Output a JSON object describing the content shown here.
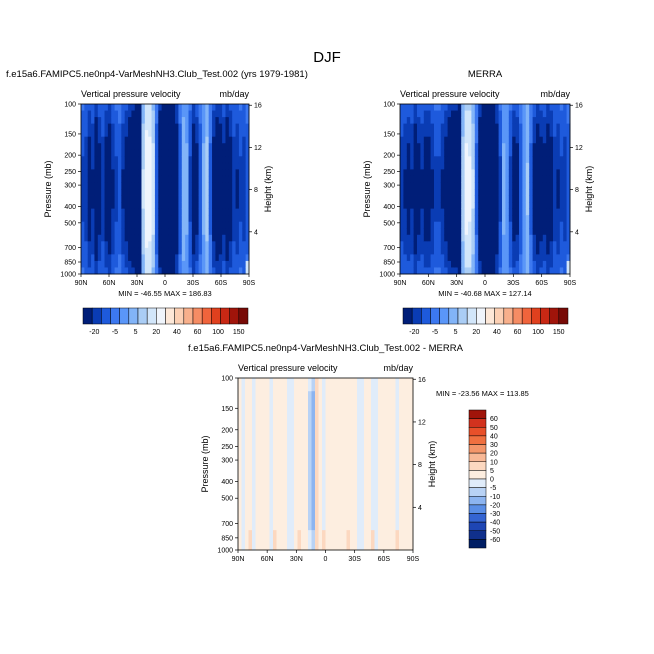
{
  "page": {
    "title": "DJF"
  },
  "chart_data": [
    {
      "type": "heatmap",
      "title": "f.e15a6.FAMIPC5.ne0np4-VarMeshNH3.Club_Test.002 (yrs 1979-1981)",
      "subtitle_left": "Vertical pressure velocity",
      "subtitle_right": "mb/day",
      "ylabel": "Pressure (mb)",
      "ylabel_right": "Height (km)",
      "x_ticks": [
        "90N",
        "60N",
        "30N",
        "0",
        "30S",
        "60S",
        "90S"
      ],
      "y_ticks": [
        "100",
        "150",
        "200",
        "250",
        "300",
        "400",
        "500",
        "700",
        "850",
        "1000"
      ],
      "y_right_ticks": [
        "4",
        "8",
        "12",
        "16"
      ],
      "stats": "MIN = -46.55   MAX = 186.83",
      "lat_profile": [
        -10,
        -12,
        -18,
        -14,
        -22,
        -16,
        -12,
        -18,
        -20,
        -14,
        -10,
        -8,
        -14,
        -18,
        -24,
        -28,
        -30,
        -32,
        12,
        28,
        26,
        14,
        -8,
        -26,
        -36,
        -40,
        -38,
        -34,
        -20,
        -8,
        6,
        4,
        -10,
        -20,
        -16,
        -8,
        4,
        10,
        -6,
        -18,
        -22,
        -20,
        -16,
        -22,
        -18,
        -12,
        -14,
        -10,
        -12,
        -8
      ]
    },
    {
      "type": "heatmap",
      "title": "MERRA",
      "subtitle_left": "Vertical pressure velocity",
      "subtitle_right": "mb/day",
      "ylabel": "Pressure (mb)",
      "ylabel_right": "Height (km)",
      "x_ticks": [
        "90N",
        "60N",
        "30N",
        "0",
        "30S",
        "60S",
        "90S"
      ],
      "y_ticks": [
        "100",
        "150",
        "200",
        "250",
        "300",
        "400",
        "500",
        "700",
        "850",
        "1000"
      ],
      "y_right_ticks": [
        "4",
        "8",
        "12",
        "16"
      ],
      "stats": "MIN = -40.68   MAX = 127.14",
      "lat_profile": [
        -12,
        -14,
        -16,
        -14,
        -20,
        -16,
        -14,
        -18,
        -18,
        -14,
        -10,
        -10,
        -14,
        -18,
        -22,
        -26,
        -28,
        -30,
        10,
        24,
        22,
        12,
        -6,
        -24,
        -34,
        -38,
        -36,
        -32,
        -20,
        -10,
        4,
        2,
        -10,
        -18,
        -16,
        -8,
        2,
        8,
        -6,
        -16,
        -20,
        -18,
        -16,
        -20,
        -18,
        -12,
        -14,
        -10,
        -12,
        -8
      ]
    },
    {
      "type": "heatmap",
      "title": "f.e15a6.FAMIPC5.ne0np4-VarMeshNH3.Club_Test.002 - MERRA",
      "subtitle_left": "Vertical pressure velocity",
      "subtitle_right": "mb/day",
      "ylabel": "Pressure (mb)",
      "ylabel_right": "Height (km)",
      "x_ticks": [
        "90N",
        "60N",
        "30N",
        "0",
        "30S",
        "60S",
        "90S"
      ],
      "y_ticks": [
        "100",
        "150",
        "200",
        "250",
        "300",
        "400",
        "500",
        "700",
        "850",
        "1000"
      ],
      "y_right_ticks": [
        "4",
        "8",
        "12",
        "16"
      ],
      "stats": "MIN = -23.56   MAX = 113.85",
      "lat_profile": [
        2,
        -1,
        2,
        1,
        -1,
        2,
        1,
        2,
        1,
        -2,
        1,
        2,
        1,
        2,
        -1,
        -2,
        1,
        2,
        3,
        2,
        -6,
        -12,
        8,
        4,
        -2,
        2,
        1,
        2,
        3,
        2,
        1,
        2,
        1,
        2,
        -2,
        -1,
        2,
        1,
        -3,
        -2,
        1,
        2,
        3,
        1,
        2,
        -1,
        2,
        1,
        2,
        1
      ]
    }
  ],
  "colorbars": {
    "shared": {
      "labels": [
        "-20",
        "-5",
        "5",
        "20",
        "40",
        "60",
        "100",
        "150"
      ],
      "colors": [
        "#001e78",
        "#0a3cb4",
        "#1e5adc",
        "#3c78f0",
        "#5a96f8",
        "#82b4f8",
        "#aacdf5",
        "#d2e6fa",
        "#f0f5fc",
        "#fde8d8",
        "#fcd0b4",
        "#f8b08c",
        "#f58c64",
        "#f0643c",
        "#e0401e",
        "#c82814",
        "#a0140a",
        "#780a06"
      ]
    },
    "difference": {
      "labels": [
        "60",
        "50",
        "40",
        "30",
        "20",
        "10",
        "5",
        "0",
        "-5",
        "-10",
        "-20",
        "-30",
        "-40",
        "-50",
        "-60"
      ],
      "colors": [
        "#a0140a",
        "#d2321e",
        "#e8502a",
        "#f07040",
        "#f4966a",
        "#f8b896",
        "#fcd8c0",
        "#fdeee0",
        "#e0ecfa",
        "#b8d2f5",
        "#8cb4f0",
        "#5a8ee6",
        "#3464d2",
        "#1e46b4",
        "#10308c",
        "#001e64"
      ]
    }
  }
}
